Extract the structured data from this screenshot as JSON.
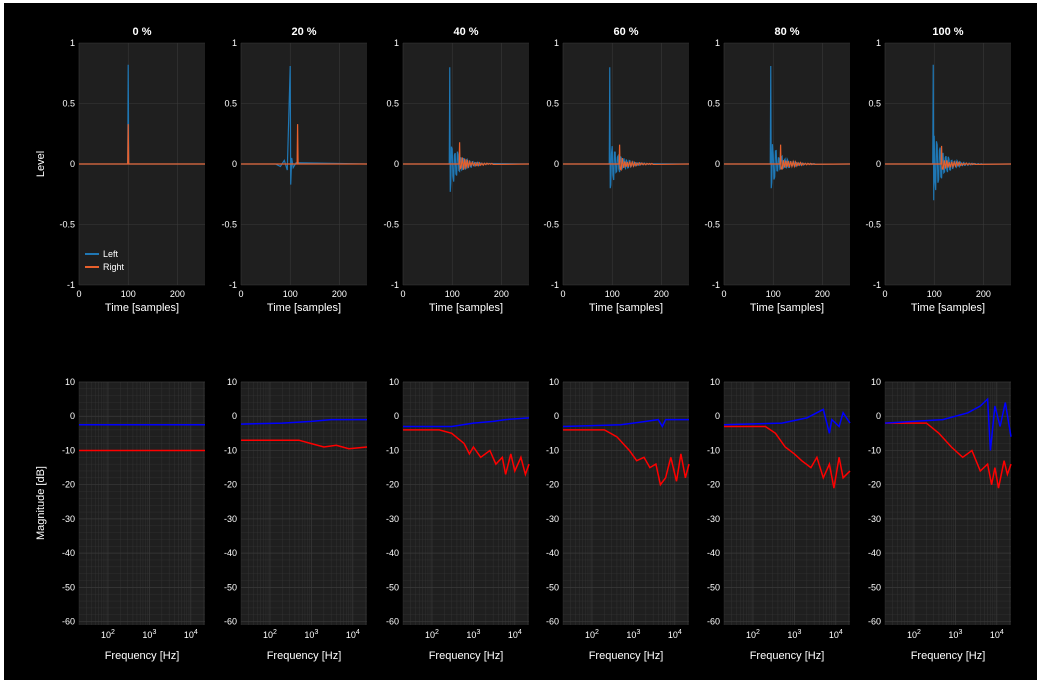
{
  "figure": {
    "background": "#000000",
    "axes_background": "#1f1f1f",
    "grid_color": "#3a3a3a",
    "grid": true
  },
  "colors": {
    "left_ir": "#1f77b4",
    "right_ir": "#e8602c",
    "left_mag": "#0000ff",
    "right_mag": "#ff0000"
  },
  "chart_data": [
    {
      "type": "line",
      "row": "impulse-response",
      "panels": [
        "0 %",
        "20 %",
        "40 %",
        "60 %",
        "80 %",
        "100 %"
      ],
      "ylabel": "Level",
      "xlabel": "Time [samples]",
      "xlim": [
        0,
        256
      ],
      "ylim": [
        -1,
        1
      ],
      "xticks": [
        "0",
        "100",
        "200"
      ],
      "yticks": [
        "1",
        "0.5",
        "0",
        "-0.5",
        "-1"
      ],
      "legend": {
        "placement": "bottom-left",
        "panel": 0,
        "entries": [
          "Left",
          "Right"
        ]
      },
      "series": [
        {
          "name": "Left",
          "peaks": [
            0.82,
            0.81,
            0.8,
            0.8,
            0.81,
            0.82
          ],
          "min": [
            0.0,
            -0.17,
            -0.23,
            -0.2,
            -0.2,
            -0.3
          ],
          "peak_sample": [
            100,
            100,
            95,
            95,
            95,
            98
          ]
        },
        {
          "name": "Right",
          "peaks": [
            0.33,
            0.33,
            0.18,
            0.16,
            0.16,
            0.15
          ],
          "peak_sample": [
            100,
            115,
            115,
            115,
            115,
            115
          ]
        }
      ]
    },
    {
      "type": "line",
      "row": "magnitude-response",
      "panels": [
        "0 %",
        "20 %",
        "40 %",
        "60 %",
        "80 %",
        "100 %"
      ],
      "ylabel": "Magnitude [dB]",
      "xlabel": "Frequency [Hz]",
      "xscale": "log",
      "xlim": [
        20,
        22000
      ],
      "ylim": [
        -61,
        10
      ],
      "xticks": [
        "10",
        "10",
        "10"
      ],
      "xtick_exponents": [
        "2",
        "3",
        "4"
      ],
      "yticks": [
        "10",
        "0",
        "-10",
        "-20",
        "-30",
        "-40",
        "-50",
        "-60"
      ],
      "series": [
        {
          "name": "Left",
          "curves": [
            [
              [
                20,
                -2.5
              ],
              [
                22000,
                -2.5
              ]
            ],
            [
              [
                20,
                -2.3
              ],
              [
                200,
                -2
              ],
              [
                1000,
                -1.5
              ],
              [
                3000,
                -1
              ],
              [
                22000,
                -1
              ]
            ],
            [
              [
                20,
                -3
              ],
              [
                300,
                -3
              ],
              [
                1000,
                -2
              ],
              [
                3000,
                -1.5
              ],
              [
                6000,
                -1
              ],
              [
                22000,
                -0.5
              ]
            ],
            [
              [
                20,
                -3
              ],
              [
                500,
                -2.5
              ],
              [
                2000,
                -1.5
              ],
              [
                4000,
                -1
              ],
              [
                5000,
                -3
              ],
              [
                6000,
                -1
              ],
              [
                22000,
                -1
              ]
            ],
            [
              [
                20,
                -2.5
              ],
              [
                500,
                -2
              ],
              [
                2000,
                -0.5
              ],
              [
                5000,
                2
              ],
              [
                7000,
                -5
              ],
              [
                8000,
                -1
              ],
              [
                12000,
                -3
              ],
              [
                15000,
                1
              ],
              [
                22000,
                -2
              ]
            ],
            [
              [
                20,
                -2
              ],
              [
                500,
                -1
              ],
              [
                2000,
                1
              ],
              [
                4000,
                3
              ],
              [
                6000,
                5
              ],
              [
                7000,
                -10
              ],
              [
                9000,
                3
              ],
              [
                12000,
                -3
              ],
              [
                16000,
                4
              ],
              [
                22000,
                -6
              ]
            ]
          ]
        },
        {
          "name": "Right",
          "curves": [
            [
              [
                20,
                -10
              ],
              [
                22000,
                -10
              ]
            ],
            [
              [
                20,
                -7
              ],
              [
                500,
                -7
              ],
              [
                1000,
                -8
              ],
              [
                2000,
                -9
              ],
              [
                4000,
                -8.5
              ],
              [
                8000,
                -9.5
              ],
              [
                22000,
                -9
              ]
            ],
            [
              [
                20,
                -4
              ],
              [
                150,
                -4
              ],
              [
                300,
                -5
              ],
              [
                600,
                -8
              ],
              [
                800,
                -11
              ],
              [
                1000,
                -9
              ],
              [
                1500,
                -12
              ],
              [
                2500,
                -10
              ],
              [
                3500,
                -14
              ],
              [
                5000,
                -12
              ],
              [
                6000,
                -17
              ],
              [
                8000,
                -11
              ],
              [
                10000,
                -16
              ],
              [
                14000,
                -12
              ],
              [
                18000,
                -17
              ],
              [
                22000,
                -14
              ]
            ],
            [
              [
                20,
                -4
              ],
              [
                200,
                -4
              ],
              [
                400,
                -6
              ],
              [
                800,
                -10
              ],
              [
                1200,
                -13
              ],
              [
                1800,
                -12
              ],
              [
                2500,
                -15
              ],
              [
                3500,
                -14
              ],
              [
                4500,
                -20
              ],
              [
                6000,
                -18
              ],
              [
                8000,
                -12
              ],
              [
                11000,
                -19
              ],
              [
                14000,
                -11
              ],
              [
                18000,
                -18
              ],
              [
                22000,
                -14
              ]
            ],
            [
              [
                20,
                -3
              ],
              [
                200,
                -3
              ],
              [
                350,
                -5
              ],
              [
                600,
                -9
              ],
              [
                1000,
                -11
              ],
              [
                1500,
                -13
              ],
              [
                2500,
                -15
              ],
              [
                3500,
                -12
              ],
              [
                5000,
                -18
              ],
              [
                7000,
                -14
              ],
              [
                9000,
                -21
              ],
              [
                12000,
                -12
              ],
              [
                15000,
                -18
              ],
              [
                22000,
                -16
              ]
            ],
            [
              [
                20,
                -2
              ],
              [
                200,
                -2
              ],
              [
                400,
                -5
              ],
              [
                800,
                -9
              ],
              [
                1500,
                -12
              ],
              [
                2500,
                -10
              ],
              [
                4000,
                -16
              ],
              [
                6000,
                -14
              ],
              [
                7500,
                -20
              ],
              [
                9000,
                -15
              ],
              [
                11000,
                -21
              ],
              [
                15000,
                -13
              ],
              [
                18000,
                -17
              ],
              [
                22000,
                -14
              ]
            ]
          ]
        }
      ]
    }
  ]
}
